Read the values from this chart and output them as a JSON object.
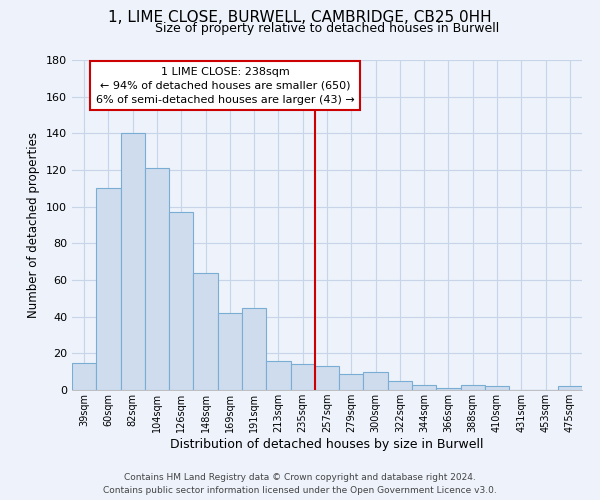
{
  "title": "1, LIME CLOSE, BURWELL, CAMBRIDGE, CB25 0HH",
  "subtitle": "Size of property relative to detached houses in Burwell",
  "xlabel": "Distribution of detached houses by size in Burwell",
  "ylabel": "Number of detached properties",
  "bar_labels": [
    "39sqm",
    "60sqm",
    "82sqm",
    "104sqm",
    "126sqm",
    "148sqm",
    "169sqm",
    "191sqm",
    "213sqm",
    "235sqm",
    "257sqm",
    "279sqm",
    "300sqm",
    "322sqm",
    "344sqm",
    "366sqm",
    "388sqm",
    "410sqm",
    "431sqm",
    "453sqm",
    "475sqm"
  ],
  "bar_values": [
    15,
    110,
    140,
    121,
    97,
    64,
    42,
    45,
    16,
    14,
    13,
    9,
    10,
    5,
    3,
    1,
    3,
    2,
    0,
    0,
    2
  ],
  "bar_color": "#cfdcee",
  "bar_edge_color": "#7aadd4",
  "vline_x": 9.5,
  "vline_color": "#cc0000",
  "ylim": [
    0,
    180
  ],
  "yticks": [
    0,
    20,
    40,
    60,
    80,
    100,
    120,
    140,
    160,
    180
  ],
  "annotation_title": "1 LIME CLOSE: 238sqm",
  "annotation_line1": "← 94% of detached houses are smaller (650)",
  "annotation_line2": "6% of semi-detached houses are larger (43) →",
  "annotation_box_color": "#ffffff",
  "annotation_box_edge": "#cc0000",
  "footer_line1": "Contains HM Land Registry data © Crown copyright and database right 2024.",
  "footer_line2": "Contains public sector information licensed under the Open Government Licence v3.0.",
  "background_color": "#edf2fb",
  "grid_color": "#c8d4e8"
}
